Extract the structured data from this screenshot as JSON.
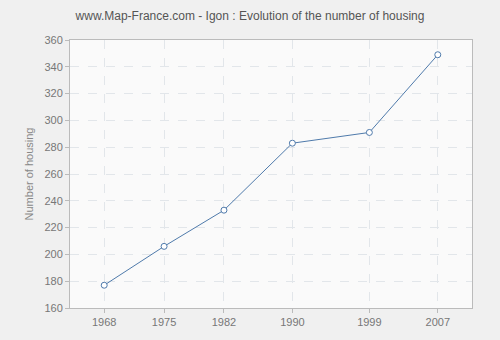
{
  "chart_data": {
    "type": "line",
    "title": "www.Map-France.com - Igon : Evolution of the number of housing",
    "y_label": "Number of housing",
    "x": [
      1968,
      1975,
      1982,
      1990,
      1999,
      2007
    ],
    "values": [
      177,
      206,
      233,
      283,
      291,
      349
    ],
    "color": "#4f7aab",
    "marker": "circle",
    "line_style": "solid",
    "xlim": [
      1964,
      2011
    ],
    "xticks": [
      1968,
      1975,
      1982,
      1990,
      1999,
      2007
    ],
    "ylim": [
      160,
      360
    ],
    "yticks": [
      160,
      180,
      200,
      220,
      240,
      260,
      280,
      300,
      320,
      340,
      360
    ],
    "grid": true
  }
}
